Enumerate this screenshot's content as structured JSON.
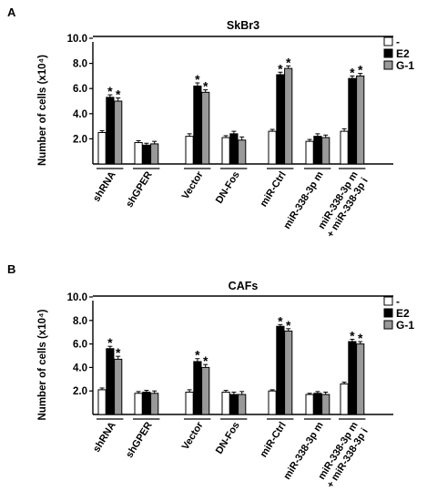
{
  "chart_data": [
    {
      "type": "bar",
      "panel_label": "A",
      "title": "SkBr3",
      "ylabel": "Number of cells (x10⁴)",
      "ylim": [
        0,
        10.0
      ],
      "yticks": [
        "2.0",
        "4.0",
        "6.0",
        "8.0",
        "10.0"
      ],
      "categories": [
        "shRNA",
        "shGPER",
        "Vector",
        "DN-Fos",
        "miR-Ctrl",
        "miR-338-3p m",
        "miR-338-3p m + miR-338-3p i"
      ],
      "legend_position": "top-right",
      "significance_marker": "*",
      "series": [
        {
          "name": "-",
          "color": "#ffffff",
          "values": [
            2.5,
            1.7,
            2.2,
            2.1,
            2.6,
            1.8,
            2.6
          ],
          "errors": [
            0.15,
            0.15,
            0.2,
            0.15,
            0.15,
            0.15,
            0.2
          ],
          "significant": [
            false,
            false,
            false,
            false,
            false,
            false,
            false
          ]
        },
        {
          "name": "E2",
          "color": "#000000",
          "values": [
            5.3,
            1.5,
            6.2,
            2.4,
            7.1,
            2.2,
            6.8
          ],
          "errors": [
            0.2,
            0.15,
            0.25,
            0.2,
            0.2,
            0.2,
            0.2
          ],
          "significant": [
            true,
            false,
            true,
            false,
            true,
            false,
            true
          ]
        },
        {
          "name": "G-1",
          "color": "#999999",
          "values": [
            5.0,
            1.6,
            5.7,
            1.9,
            7.6,
            2.1,
            7.0
          ],
          "errors": [
            0.25,
            0.2,
            0.2,
            0.25,
            0.2,
            0.2,
            0.2
          ],
          "significant": [
            true,
            false,
            true,
            false,
            true,
            false,
            true
          ]
        }
      ]
    },
    {
      "type": "bar",
      "panel_label": "B",
      "title": "CAFs",
      "ylabel": "Number of cells (x10⁴)",
      "ylim": [
        0,
        10.0
      ],
      "yticks": [
        "2.0",
        "4.0",
        "6.0",
        "8.0",
        "10.0"
      ],
      "categories": [
        "shRNA",
        "shGPER",
        "Vector",
        "DN-Fos",
        "miR-Ctrl",
        "miR-338-3p m",
        "miR-338-3p m + miR-338-3p i"
      ],
      "legend_position": "top-right",
      "significance_marker": "*",
      "series": [
        {
          "name": "-",
          "color": "#ffffff",
          "values": [
            2.1,
            1.8,
            1.9,
            1.9,
            2.0,
            1.7,
            2.6
          ],
          "errors": [
            0.15,
            0.15,
            0.2,
            0.15,
            0.1,
            0.1,
            0.15
          ],
          "significant": [
            false,
            false,
            false,
            false,
            false,
            false,
            false
          ]
        },
        {
          "name": "E2",
          "color": "#000000",
          "values": [
            5.6,
            1.9,
            4.5,
            1.7,
            7.5,
            1.8,
            6.2
          ],
          "errors": [
            0.2,
            0.15,
            0.25,
            0.2,
            0.15,
            0.15,
            0.2
          ],
          "significant": [
            true,
            false,
            true,
            false,
            true,
            false,
            true
          ]
        },
        {
          "name": "G-1",
          "color": "#999999",
          "values": [
            4.7,
            1.8,
            4.0,
            1.7,
            7.1,
            1.7,
            6.0
          ],
          "errors": [
            0.25,
            0.2,
            0.25,
            0.25,
            0.2,
            0.2,
            0.2
          ],
          "significant": [
            true,
            false,
            true,
            false,
            true,
            false,
            true
          ]
        }
      ]
    }
  ]
}
